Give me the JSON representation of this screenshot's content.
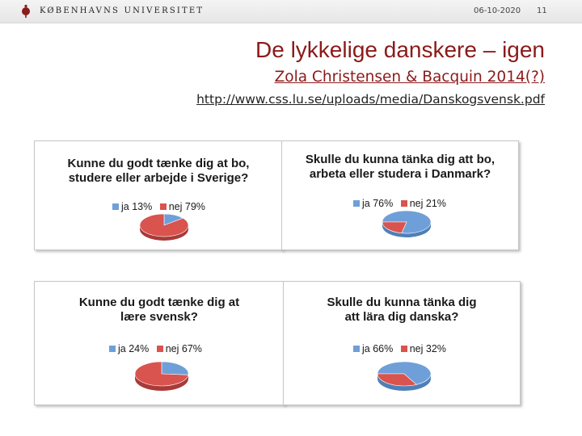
{
  "header": {
    "university_name": "KØBENHAVNS UNIVERSITET",
    "date": "06-10-2020",
    "page_number": "11"
  },
  "slide": {
    "title": "De lykkelige danskere – igen",
    "subtitle": "Zola Christensen & Bacquin 2014(?)",
    "url": "http://www.css.lu.se/uploads/media/Danskogsvensk.pdf"
  },
  "colors": {
    "ja": "#6f9fd8",
    "nej": "#d9534f",
    "brand": "#8b1a1a"
  },
  "chart_data": [
    {
      "type": "pie",
      "title": "Kunne du godt tænke dig at bo,\nstudere eller arbejde i Sverige?",
      "legend": [
        {
          "label": "ja 13%",
          "value": 13
        },
        {
          "label": "nej 79%",
          "value": 79
        }
      ]
    },
    {
      "type": "pie",
      "title": "Skulle du kunna tänka dig att bo,\narbeta eller studera i Danmark?",
      "legend": [
        {
          "label": "ja 76%",
          "value": 76
        },
        {
          "label": "nej 21%",
          "value": 21
        }
      ]
    },
    {
      "type": "pie",
      "title": "Kunne du godt tænke dig at\nlære svensk?",
      "legend": [
        {
          "label": "ja 24%",
          "value": 24
        },
        {
          "label": "nej 67%",
          "value": 67
        }
      ]
    },
    {
      "type": "pie",
      "title": "Skulle du kunna tänka dig\natt lära dig danska?",
      "legend": [
        {
          "label": "ja 66%",
          "value": 66
        },
        {
          "label": "nej 32%",
          "value": 32
        }
      ]
    }
  ]
}
